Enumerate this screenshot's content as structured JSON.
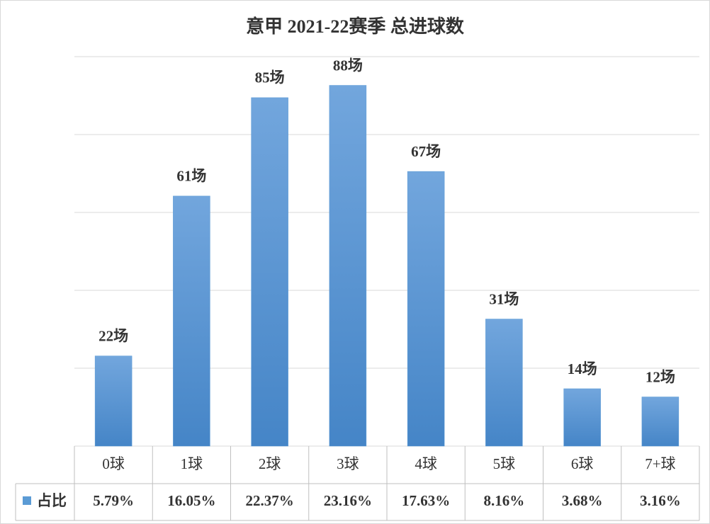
{
  "chart_data": {
    "type": "bar",
    "title": "意甲 2021-22赛季 总进球数",
    "categories": [
      "0球",
      "1球",
      "2球",
      "3球",
      "4球",
      "5球",
      "6球",
      "7+球"
    ],
    "values": [
      22,
      61,
      85,
      88,
      67,
      31,
      14,
      12
    ],
    "value_labels": [
      "22场",
      "61场",
      "85场",
      "88场",
      "67场",
      "31场",
      "14场",
      "12场"
    ],
    "color": "#5b9bd5",
    "ylim": [
      0,
      95
    ],
    "yticks": [
      0,
      19,
      38,
      57,
      76,
      95
    ],
    "grid": true,
    "table": {
      "name": "占比",
      "color": "#5b9bd5",
      "values": [
        5.79,
        16.05,
        22.37,
        23.16,
        17.63,
        8.16,
        3.68,
        3.16
      ],
      "value_labels": [
        "5.79%",
        "16.05%",
        "22.37%",
        "23.16%",
        "17.63%",
        "8.16%",
        "3.68%",
        "3.16%"
      ]
    }
  }
}
